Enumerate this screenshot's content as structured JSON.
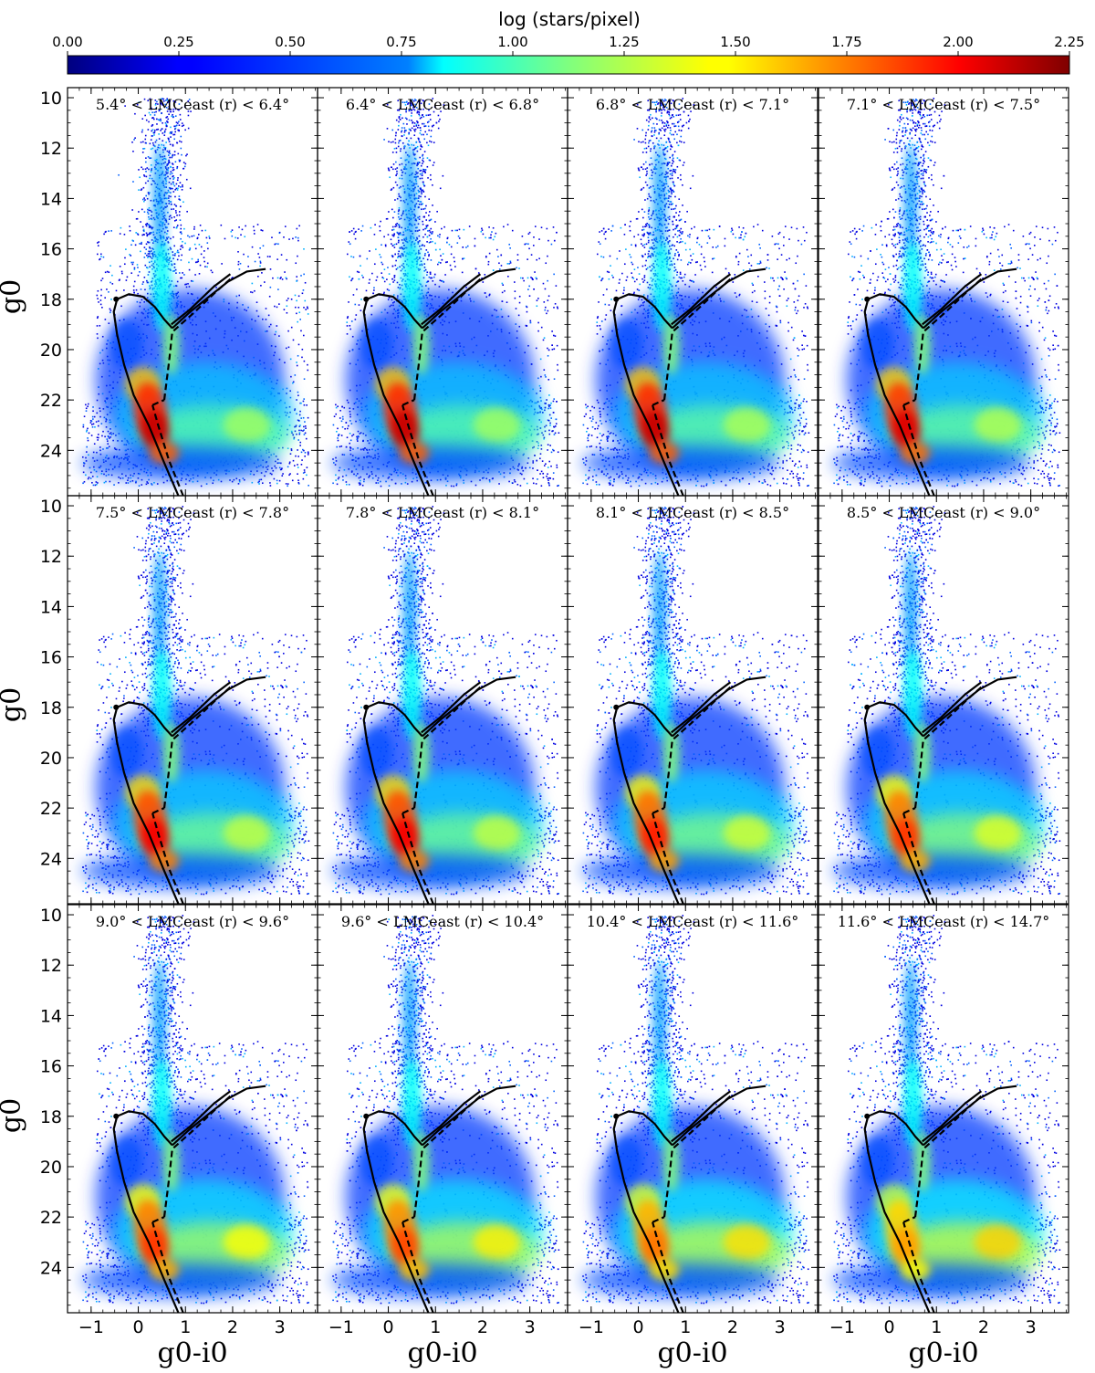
{
  "colorbar": {
    "label": "log (stars/pixel)",
    "min": 0.0,
    "max": 2.25,
    "ticks": [
      "0.00",
      "0.25",
      "0.50",
      "0.75",
      "1.00",
      "1.25",
      "1.50",
      "1.75",
      "2.00",
      "2.25"
    ],
    "colormap": "jet"
  },
  "chart_data": {
    "type": "heatmap",
    "layout": "3 rows x 4 columns, shared axes",
    "xlabel": "g0-i0",
    "ylabel": "g0",
    "xlim": [
      -1.5,
      3.8
    ],
    "ylim": [
      25.8,
      9.6
    ],
    "x_ticks": [
      "−1",
      "0",
      "1",
      "2",
      "3"
    ],
    "y_ticks": [
      "10",
      "12",
      "14",
      "16",
      "18",
      "20",
      "22",
      "24"
    ],
    "y_inverted": true,
    "panels": [
      {
        "title": "5.4° < LMCeast (r) < 6.4°",
        "r_min": 5.4,
        "r_max": 6.4,
        "peak_log_density": 2.2,
        "red_clump_strength": 0.45
      },
      {
        "title": "6.4° < LMCeast (r) < 6.8°",
        "r_min": 6.4,
        "r_max": 6.8,
        "peak_log_density": 2.2,
        "red_clump_strength": 0.45
      },
      {
        "title": "6.8° < LMCeast (r) < 7.1°",
        "r_min": 6.8,
        "r_max": 7.1,
        "peak_log_density": 2.2,
        "red_clump_strength": 0.48
      },
      {
        "title": "7.1° < LMCeast (r) < 7.5°",
        "r_min": 7.1,
        "r_max": 7.5,
        "peak_log_density": 2.15,
        "red_clump_strength": 0.5
      },
      {
        "title": "7.5° < LMCeast (r) < 7.8°",
        "r_min": 7.5,
        "r_max": 7.8,
        "peak_log_density": 2.1,
        "red_clump_strength": 0.55
      },
      {
        "title": "7.8° < LMCeast (r) < 8.1°",
        "r_min": 7.8,
        "r_max": 8.1,
        "peak_log_density": 2.1,
        "red_clump_strength": 0.55
      },
      {
        "title": "8.1° < LMCeast (r) < 8.5°",
        "r_min": 8.1,
        "r_max": 8.5,
        "peak_log_density": 2.0,
        "red_clump_strength": 0.6
      },
      {
        "title": "8.5° < LMCeast (r) < 9.0°",
        "r_min": 8.5,
        "r_max": 9.0,
        "peak_log_density": 1.95,
        "red_clump_strength": 0.65
      },
      {
        "title": "9.0° < LMCeast (r) < 9.6°",
        "r_min": 9.0,
        "r_max": 9.6,
        "peak_log_density": 1.95,
        "red_clump_strength": 0.75
      },
      {
        "title": "9.6° < LMCeast (r) < 10.4°",
        "r_min": 9.6,
        "r_max": 10.4,
        "peak_log_density": 1.9,
        "red_clump_strength": 0.8
      },
      {
        "title": "10.4° < LMCeast (r) < 11.6°",
        "r_min": 10.4,
        "r_max": 11.6,
        "peak_log_density": 1.8,
        "red_clump_strength": 0.85
      },
      {
        "title": "11.6° < LMCeast (r) < 14.7°",
        "r_min": 11.6,
        "r_max": 14.7,
        "peak_log_density": 1.7,
        "red_clump_strength": 0.9
      }
    ],
    "isochrone_solid": {
      "style": "solid",
      "main_sequence": [
        [
          0.85,
          25.8
        ],
        [
          0.55,
          24.5
        ],
        [
          0.22,
          23.0
        ],
        [
          -0.1,
          21.8
        ],
        [
          -0.3,
          20.6
        ],
        [
          -0.45,
          19.4
        ],
        [
          -0.52,
          18.5
        ],
        [
          -0.45,
          18.0
        ],
        [
          -0.2,
          17.8
        ],
        [
          0.1,
          17.9
        ],
        [
          0.35,
          18.3
        ],
        [
          0.55,
          18.8
        ],
        [
          0.72,
          19.15
        ]
      ],
      "giant_branch": [
        [
          0.72,
          19.15
        ],
        [
          1.1,
          18.5
        ],
        [
          1.5,
          17.9
        ],
        [
          1.9,
          17.3
        ],
        [
          2.3,
          16.9
        ],
        [
          2.7,
          16.8
        ]
      ],
      "horizontal_branch": [
        [
          0.7,
          19.0
        ],
        [
          1.1,
          18.4
        ],
        [
          1.6,
          17.5
        ],
        [
          1.95,
          17.0
        ]
      ]
    },
    "isochrone_dashed": {
      "style": "dashed",
      "main_sequence": [
        [
          0.95,
          25.8
        ],
        [
          0.65,
          24.4
        ],
        [
          0.42,
          23.0
        ],
        [
          0.3,
          22.2
        ]
      ],
      "subgiant_branch": [
        [
          0.3,
          22.2
        ],
        [
          0.55,
          22.0
        ]
      ],
      "giant_branch": [
        [
          0.55,
          22.0
        ],
        [
          0.65,
          20.5
        ],
        [
          0.72,
          19.3
        ],
        [
          1.2,
          18.5
        ],
        [
          1.65,
          17.7
        ],
        [
          1.95,
          17.2
        ]
      ]
    }
  }
}
